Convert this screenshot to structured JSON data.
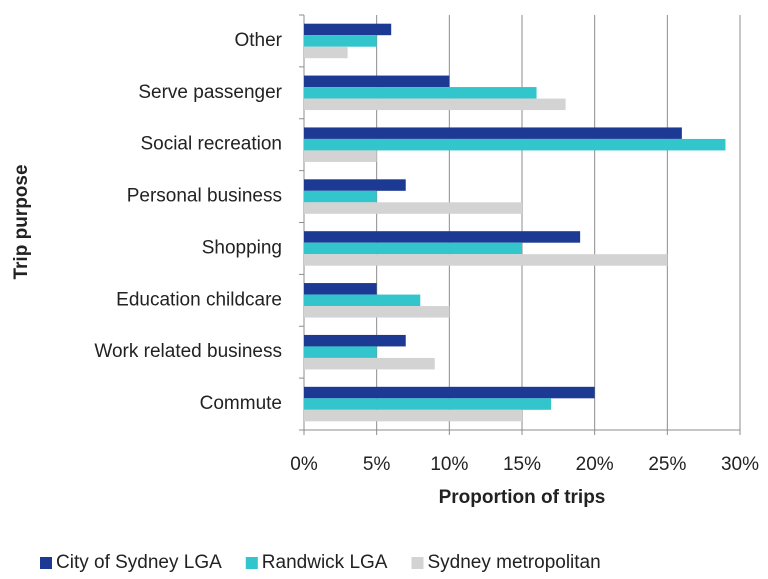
{
  "chart_data": {
    "type": "hbar",
    "x_label": "Proportion of trips",
    "y_label": "Trip purpose",
    "categories": [
      "Other",
      "Serve passenger",
      "Social recreation",
      "Personal business",
      "Shopping",
      "Education childcare",
      "Work related business",
      "Commute"
    ],
    "series": [
      {
        "name": "City of Sydney LGA",
        "color": "#1c3a94",
        "values": [
          6,
          10,
          26,
          7,
          19,
          5,
          7,
          20
        ]
      },
      {
        "name": "Randwick LGA",
        "color": "#33c5cc",
        "values": [
          5,
          16,
          29,
          5,
          15,
          8,
          5,
          17
        ]
      },
      {
        "name": "Sydney metropolitan",
        "color": "#d3d3d3",
        "values": [
          3,
          18,
          5,
          15,
          25,
          10,
          9,
          15
        ]
      }
    ],
    "xlim": [
      0,
      30
    ],
    "xticks": [
      {
        "value": 0,
        "label": "0%"
      },
      {
        "value": 5,
        "label": "5%"
      },
      {
        "value": 10,
        "label": "10%"
      },
      {
        "value": 15,
        "label": "15%"
      },
      {
        "value": 20,
        "label": "20%"
      },
      {
        "value": 25,
        "label": "25%"
      },
      {
        "value": 30,
        "label": "30%"
      }
    ],
    "grid": true,
    "legend": "bottom"
  }
}
